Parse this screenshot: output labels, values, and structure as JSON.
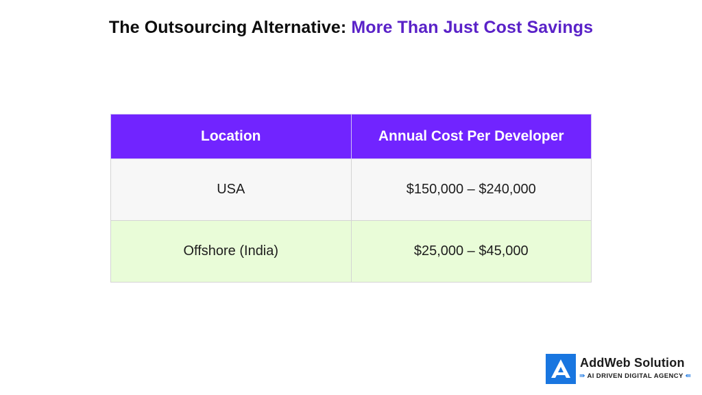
{
  "title": {
    "part1": "The Outsourcing Alternative: ",
    "part2": "More Than Just Cost Savings"
  },
  "table": {
    "headers": [
      "Location",
      "Annual Cost Per Developer"
    ],
    "rows": [
      {
        "location": "USA",
        "cost": "$150,000 – $240,000"
      },
      {
        "location": "Offshore (India)",
        "cost": "$25,000 – $45,000"
      }
    ]
  },
  "logo": {
    "name": "AddWeb Solution",
    "tagline_left_glyph": "⇛",
    "tagline": "AI DRIVEN DIGITAL AGENCY",
    "tagline_right_glyph": "⇚",
    "icon": "addweb-logo-icon"
  },
  "colors": {
    "title_text": "#0d0d0d",
    "title_accent": "#5a22c8",
    "header_bg": "#7124ff",
    "row_usa_bg": "#f7f7f7",
    "row_offshore_bg": "#e9fcd8",
    "logo_blue": "#1976e0"
  }
}
